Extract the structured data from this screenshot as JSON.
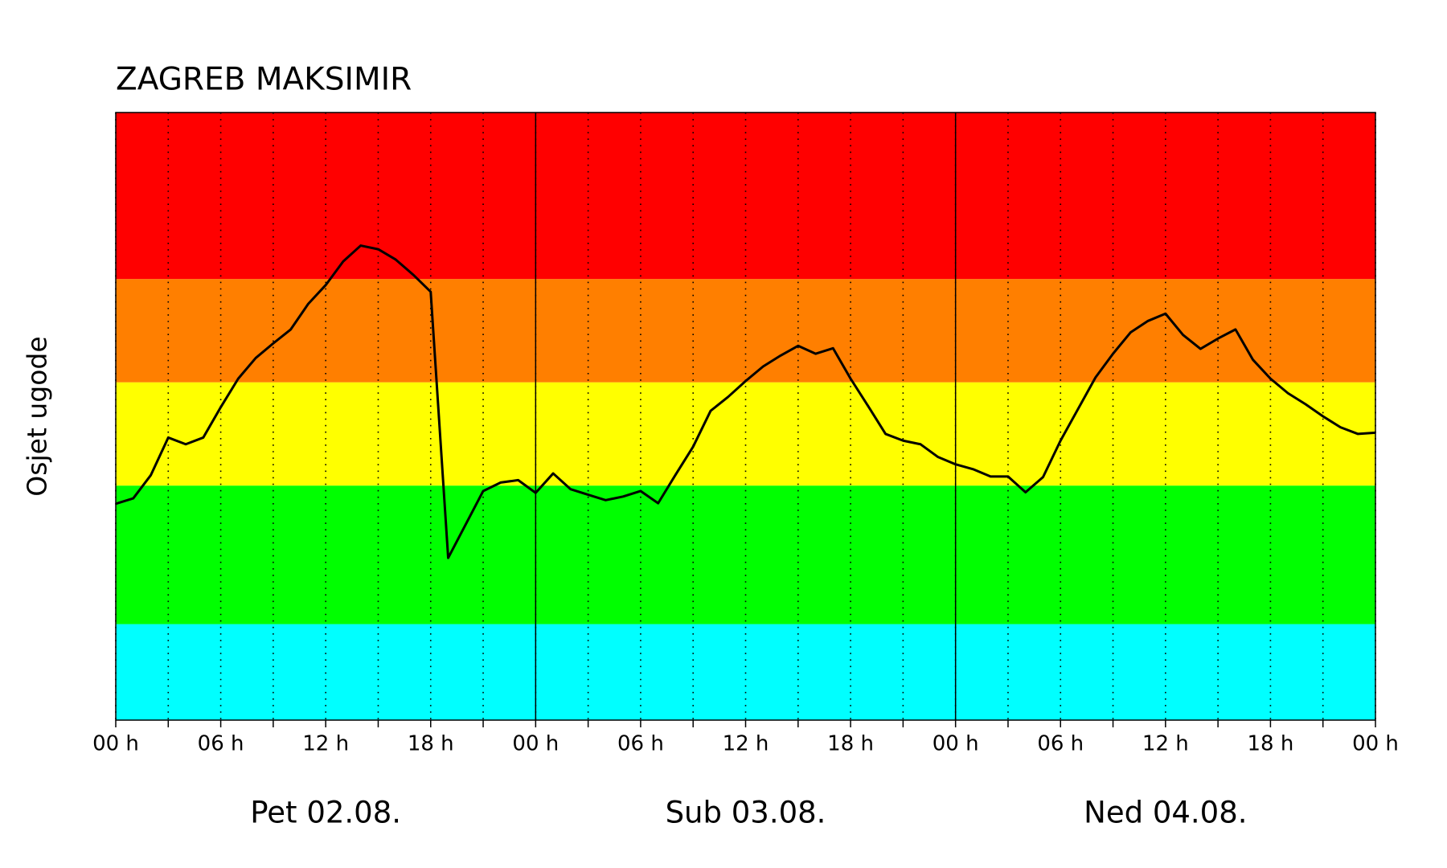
{
  "chart_data": {
    "type": "line",
    "title": "ZAGREB MAKSIMIR",
    "ylabel": "Osjet ugode",
    "categories": [
      "Pet 02.08.",
      "Sub 03.08.",
      "Ned 04.08."
    ],
    "x": [
      0,
      1,
      2,
      3,
      4,
      5,
      6,
      7,
      8,
      9,
      10,
      11,
      12,
      13,
      14,
      15,
      16,
      17,
      18,
      19,
      20,
      21,
      22,
      23,
      24,
      25,
      26,
      27,
      28,
      29,
      30,
      31,
      32,
      33,
      34,
      35,
      36,
      37,
      38,
      39,
      40,
      41,
      42,
      43,
      44,
      45,
      46,
      47,
      48,
      49,
      50,
      51,
      52,
      53,
      54,
      55,
      56,
      57,
      58,
      59,
      60,
      61,
      62,
      63,
      64,
      65,
      66,
      67,
      68,
      69,
      70,
      71,
      72
    ],
    "series": [
      {
        "color": "#000000",
        "values": [
          35.6,
          36.5,
          40.3,
          46.5,
          45.4,
          46.5,
          51.5,
          56.2,
          59.6,
          62.0,
          64.3,
          68.5,
          71.6,
          75.5,
          78.1,
          77.5,
          75.8,
          73.3,
          70.5,
          26.7,
          32.2,
          37.7,
          39.1,
          39.5,
          37.4,
          40.6,
          38.0,
          37.1,
          36.2,
          36.8,
          37.7,
          35.7,
          40.4,
          45.0,
          50.9,
          53.2,
          55.8,
          58.2,
          60.0,
          61.6,
          60.3,
          61.2,
          56.2,
          51.7,
          47.1,
          46.0,
          45.4,
          43.3,
          42.1,
          41.3,
          40.1,
          40.1,
          37.5,
          40.0,
          46.0,
          51.2,
          56.4,
          60.3,
          63.8,
          65.7,
          66.9,
          63.4,
          61.1,
          62.8,
          64.3,
          59.3,
          56.2,
          53.8,
          52.0,
          50.0,
          48.2,
          47.1,
          47.3
        ]
      }
    ],
    "bands": [
      {
        "from": 0,
        "to": 15.8,
        "color": "#00ffff"
      },
      {
        "from": 15.8,
        "to": 38.6,
        "color": "#00ff00"
      },
      {
        "from": 38.6,
        "to": 55.6,
        "color": "#ffff00"
      },
      {
        "from": 55.6,
        "to": 72.6,
        "color": "#ff7f00"
      },
      {
        "from": 72.6,
        "to": 100,
        "color": "#ff0000"
      }
    ],
    "xlim": [
      0,
      72
    ],
    "ylim": [
      0,
      100
    ],
    "xticks": [
      {
        "value": 0,
        "label": "00 h"
      },
      {
        "value": 6,
        "label": "06 h"
      },
      {
        "value": 12,
        "label": "12 h"
      },
      {
        "value": 18,
        "label": "18 h"
      },
      {
        "value": 24,
        "label": "00 h"
      },
      {
        "value": 30,
        "label": "06 h"
      },
      {
        "value": 36,
        "label": "12 h"
      },
      {
        "value": 42,
        "label": "18 h"
      },
      {
        "value": 48,
        "label": "00 h"
      },
      {
        "value": 54,
        "label": "06 h"
      },
      {
        "value": 60,
        "label": "12 h"
      },
      {
        "value": 66,
        "label": "18 h"
      },
      {
        "value": 72,
        "label": "00 h"
      }
    ],
    "xticks_minor": [
      3,
      9,
      15,
      21,
      27,
      33,
      39,
      45,
      51,
      57,
      63,
      69
    ],
    "grid": true
  }
}
